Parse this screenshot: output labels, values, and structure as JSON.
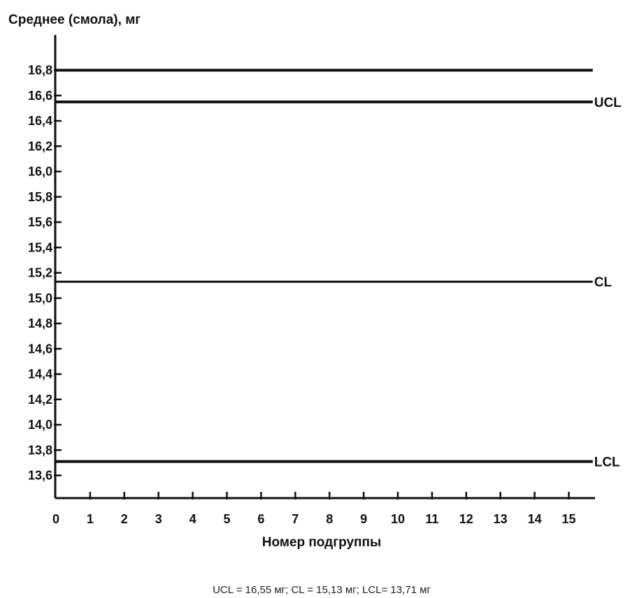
{
  "chart_data": {
    "type": "line",
    "title": "Среднее (смола), мг",
    "xlabel": "Номер подгруппы",
    "ylabel": "",
    "x_ticks": [
      0,
      1,
      2,
      3,
      4,
      5,
      6,
      7,
      8,
      9,
      10,
      11,
      12,
      13,
      14,
      15
    ],
    "x_tick_labels": [
      "0",
      "1",
      "2",
      "3",
      "4",
      "5",
      "6",
      "7",
      "8",
      "9",
      "10",
      "11",
      "12",
      "13",
      "14",
      "15"
    ],
    "y_ticks": [
      13.6,
      13.8,
      14.0,
      14.2,
      14.4,
      14.6,
      14.8,
      15.0,
      15.2,
      15.4,
      15.6,
      15.8,
      16.0,
      16.2,
      16.4,
      16.6,
      16.8
    ],
    "y_tick_labels": [
      "13,6",
      "13,8",
      "14,0",
      "14,2",
      "14,4",
      "14,6",
      "14,8",
      "15,0",
      "15,2",
      "15,4",
      "15,6",
      "15,8",
      "16,0",
      "16,2",
      "16,4",
      "16,6",
      "16,8"
    ],
    "xlim": [
      0,
      15.7
    ],
    "ylim": [
      13.5,
      16.9
    ],
    "grid": false,
    "series": [
      {
        "name": "",
        "values": [
          16.8,
          16.8
        ],
        "x": [
          0,
          15.7
        ],
        "label": ""
      },
      {
        "name": "UCL",
        "values": [
          16.55,
          16.55
        ],
        "x": [
          0,
          15.7
        ],
        "label": "UCL"
      },
      {
        "name": "CL",
        "values": [
          15.13,
          15.13
        ],
        "x": [
          0,
          15.7
        ],
        "label": "CL"
      },
      {
        "name": "LCL",
        "values": [
          13.71,
          13.71
        ],
        "x": [
          0,
          15.7
        ],
        "label": "LCL"
      }
    ],
    "caption": "UCL = 16,55 мг; CL = 15,13 мг; LCL= 13,71 мг"
  }
}
